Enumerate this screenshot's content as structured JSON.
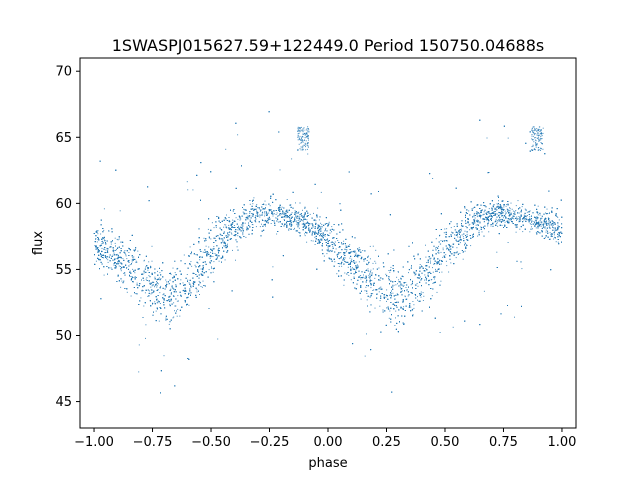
{
  "chart_data": {
    "type": "scatter",
    "title": "1SWASPJ015627.59+122449.0 Period 150750.04688s",
    "xlabel": "phase",
    "ylabel": "flux",
    "xlim": [
      -1.06,
      1.06
    ],
    "ylim": [
      43.0,
      71.0
    ],
    "xticks": [
      -1.0,
      -0.75,
      -0.5,
      -0.25,
      0.0,
      0.25,
      0.5,
      0.75,
      1.0
    ],
    "xtick_labels": [
      "−1.00",
      "−0.75",
      "−0.50",
      "−0.25",
      "0.00",
      "0.25",
      "0.50",
      "0.75",
      "1.00"
    ],
    "yticks": [
      45,
      50,
      55,
      60,
      65,
      70
    ],
    "ytick_labels": [
      "45",
      "50",
      "55",
      "60",
      "65",
      "70"
    ],
    "grid": false,
    "legend": "none",
    "marker_color": "#1f77b4",
    "series": [
      {
        "x": [
          -1.0,
          -0.95,
          -0.9,
          -0.85,
          -0.8,
          -0.75,
          -0.7,
          -0.65,
          -0.6,
          -0.55,
          -0.5,
          -0.45,
          -0.4,
          -0.35,
          -0.3,
          -0.25,
          -0.2,
          -0.15,
          -0.1,
          -0.05,
          0.0,
          0.05,
          0.1,
          0.15,
          0.2,
          0.25,
          0.3,
          0.35,
          0.4,
          0.45,
          0.5,
          0.55,
          0.6,
          0.65,
          0.7,
          0.75,
          0.8,
          0.85,
          0.9,
          0.95,
          1.0
        ],
        "y": [
          57.0,
          56.5,
          55.9,
          55.2,
          54.4,
          53.6,
          53.1,
          53.3,
          54.1,
          55.2,
          56.4,
          57.4,
          58.1,
          58.7,
          59.1,
          59.2,
          59.1,
          58.9,
          58.6,
          58.0,
          57.1,
          56.3,
          55.6,
          55.0,
          54.2,
          53.4,
          53.0,
          53.3,
          54.2,
          55.3,
          56.5,
          57.5,
          58.2,
          58.8,
          59.1,
          59.2,
          59.1,
          58.9,
          58.6,
          58.3,
          57.8
        ],
        "spread": [
          1.4,
          1.5,
          1.6,
          1.8,
          2.0,
          2.2,
          2.2,
          2.1,
          2.0,
          1.9,
          1.8,
          1.6,
          1.4,
          1.2,
          1.0,
          1.0,
          1.0,
          1.0,
          1.0,
          1.2,
          1.4,
          1.5,
          1.6,
          1.8,
          2.0,
          2.2,
          2.2,
          2.1,
          2.0,
          1.9,
          1.8,
          1.6,
          1.4,
          1.2,
          1.0,
          1.0,
          1.0,
          1.0,
          1.0,
          1.1,
          1.3
        ]
      }
    ],
    "clusters": [
      {
        "x_range": [
          -0.13,
          -0.08
        ],
        "y_range": [
          64.0,
          65.8
        ]
      },
      {
        "x_range": [
          0.87,
          0.92
        ],
        "y_range": [
          64.0,
          65.8
        ]
      }
    ],
    "scatter_points": 9000
  }
}
